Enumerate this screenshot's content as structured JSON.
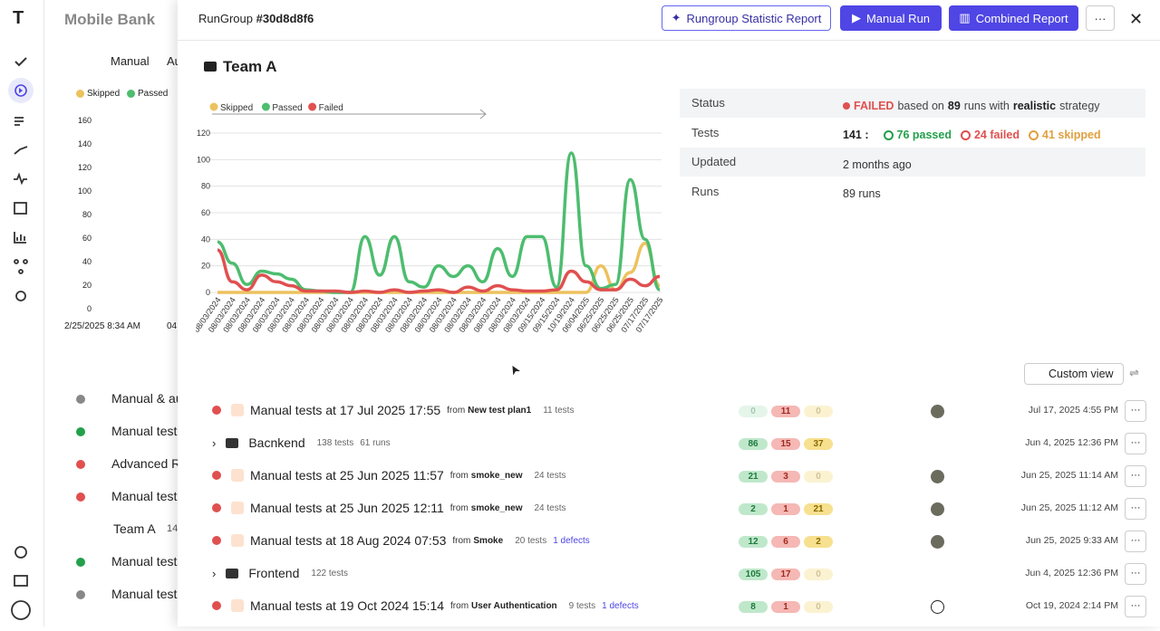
{
  "background": {
    "title": "Mobile Bank",
    "tabs": [
      "Manual",
      "Au"
    ],
    "legend": [
      "Skipped",
      "Passed"
    ],
    "yticks": [
      "160",
      "140",
      "120",
      "100",
      "80",
      "60",
      "40",
      "20",
      "0"
    ],
    "x_label": "2/25/2025 8:34 AM",
    "x_label2": "04",
    "items": [
      "Manual & au",
      "Manual test",
      "Advanced R",
      "Manual test",
      "Team A",
      "Manual test",
      "Manual test"
    ],
    "team_count": "14"
  },
  "header": {
    "kind": "RunGroup",
    "id": "#30d8d8f6",
    "buttons": [
      "Rungroup Statistic Report",
      "Manual Run",
      "Combined Report"
    ]
  },
  "group_title": "Team A",
  "chart": {
    "type": "line",
    "legend": "top-left",
    "categories": [
      "08/03/2024",
      "08/03/2024",
      "08/03/2024",
      "08/03/2024",
      "08/03/2024",
      "08/03/2024",
      "08/03/2024",
      "08/03/2024",
      "08/03/2024",
      "08/03/2024",
      "08/03/2024",
      "08/03/2024",
      "08/03/2024",
      "08/03/2024",
      "08/03/2024",
      "08/03/2024",
      "08/03/2024",
      "08/03/2024",
      "08/03/2024",
      "08/03/2024",
      "08/03/2024",
      "08/03/2024",
      "09/15/2024",
      "09/15/2024",
      "10/19/2024",
      "06/04/2025",
      "06/25/2025",
      "06/25/2025",
      "06/25/2025",
      "07/17/2025",
      "07/17/2025"
    ],
    "series": [
      {
        "name": "Skipped",
        "color": "#ecc25e",
        "values": [
          0,
          0,
          0,
          0,
          0,
          0,
          0,
          0,
          0,
          0,
          0,
          0,
          0,
          0,
          0,
          0,
          0,
          0,
          0,
          0,
          0,
          0,
          0,
          0,
          0,
          0,
          20,
          2,
          15,
          37,
          5
        ]
      },
      {
        "name": "Passed",
        "color": "#4dbd6f",
        "values": [
          38,
          22,
          6,
          16,
          14,
          10,
          2,
          1,
          0,
          0,
          42,
          13,
          42,
          8,
          4,
          20,
          12,
          20,
          8,
          33,
          12,
          42,
          42,
          4,
          105,
          20,
          3,
          6,
          85,
          40,
          2
        ]
      },
      {
        "name": "Failed",
        "color": "#e0504f",
        "values": [
          32,
          8,
          2,
          13,
          8,
          5,
          1,
          1,
          1,
          0,
          1,
          0,
          2,
          0,
          1,
          2,
          0,
          4,
          1,
          5,
          2,
          1,
          1,
          2,
          16,
          8,
          2,
          2,
          10,
          5,
          12
        ]
      }
    ],
    "ylim": [
      0,
      120
    ],
    "yticks": [
      0,
      20,
      40,
      60,
      80,
      100,
      120
    ]
  },
  "status": {
    "labels": [
      "Status",
      "Tests",
      "Updated",
      "Runs"
    ],
    "result": "FAILED",
    "based_on": "based on",
    "runs_count": "89",
    "runs_with": "runs with",
    "strategy": "realistic",
    "strategy_word": "strategy",
    "tests_total": "141 :",
    "passed": "76 passed",
    "failed": "24 failed",
    "skipped": "41 skipped",
    "updated": "2 months ago",
    "runs": "89 runs"
  },
  "custom_view": "Custom view",
  "from_word": "from",
  "rows": [
    {
      "kind": "run",
      "name": "Manual tests at 17 Jul 2025 17:55",
      "plan": "New test plan1",
      "tests": "11 tests",
      "counts": [
        0,
        11,
        0
      ],
      "date": "Jul 17, 2025 4:55 PM"
    },
    {
      "kind": "folder",
      "name": "Bacnkend",
      "tests": "138 tests",
      "runs": "61 runs",
      "counts": [
        86,
        15,
        37
      ],
      "date": "Jun 4, 2025 12:36 PM"
    },
    {
      "kind": "run",
      "name": "Manual tests at 25 Jun 2025 11:57",
      "plan": "smoke_new",
      "tests": "24 tests",
      "counts": [
        21,
        3,
        0
      ],
      "date": "Jun 25, 2025 11:14 AM"
    },
    {
      "kind": "run",
      "name": "Manual tests at 25 Jun 2025 12:11",
      "plan": "smoke_new",
      "tests": "24 tests",
      "counts": [
        2,
        1,
        21
      ],
      "date": "Jun 25, 2025 11:12 AM"
    },
    {
      "kind": "run",
      "name": "Manual tests at 18 Aug 2024 07:53",
      "plan": "Smoke",
      "tests": "20 tests",
      "defects": "1 defects",
      "counts": [
        12,
        6,
        2
      ],
      "date": "Jun 25, 2025 9:33 AM"
    },
    {
      "kind": "folder",
      "name": "Frontend",
      "tests": "122 tests",
      "counts": [
        105,
        17,
        0
      ],
      "date": "Jun 4, 2025 12:36 PM"
    },
    {
      "kind": "run",
      "name": "Manual tests at 19 Oct 2024 15:14",
      "plan": "User Authentication",
      "tests": "9 tests",
      "defects": "1 defects",
      "counts": [
        8,
        1,
        0
      ],
      "date": "Oct 19, 2024 2:14 PM",
      "logo": true
    }
  ]
}
